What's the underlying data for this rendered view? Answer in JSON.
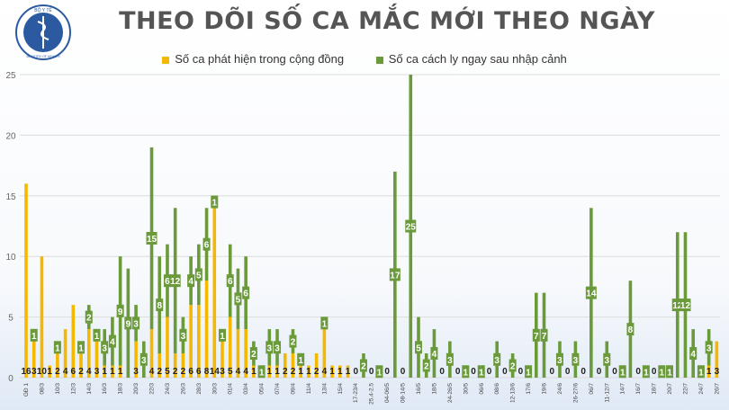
{
  "logo": {
    "text_top": "BỘ Y TẾ",
    "text_bottom": "MINISTRY OF HEALTH"
  },
  "chart_data": {
    "type": "bar",
    "stacked": true,
    "title": "THEO DÕI SỐ CA MẮC MỚI THEO NGÀY",
    "ylim": [
      0,
      25
    ],
    "yticks": [
      0,
      5,
      10,
      15,
      20,
      25
    ],
    "grid": true,
    "legend_position": "top",
    "colors": {
      "community": "#f5b800",
      "quarantine": "#6a9a3a"
    },
    "x_tick_labels": [
      "GĐ 1",
      "08/3",
      "10/3",
      "12/3",
      "14/3",
      "16/3",
      "18/3",
      "20/3",
      "22/3",
      "24/3",
      "26/3",
      "28/3",
      "30/3",
      "01/4",
      "03/4",
      "05/4",
      "07/4",
      "09/4",
      "11/4",
      "13/4",
      "15/4",
      "17-23/4",
      "25.4-2.5",
      "04-06/5",
      "08-14/5",
      "16/5",
      "18/5",
      "24-26/5",
      "30/5",
      "06/6",
      "08/6",
      "12-13/6",
      "17/6",
      "19/6",
      "24/6",
      "26-27/6",
      "06/7",
      "11-12/7",
      "14/7",
      "16/7",
      "18/7",
      "20/7",
      "22/7",
      "24/7",
      "26/7"
    ],
    "series": [
      {
        "name": "Số ca phát hiện trong cộng đồng",
        "values": [
          16,
          3,
          10,
          1,
          2,
          4,
          6,
          2,
          4,
          3,
          1,
          1,
          1,
          0,
          3,
          0,
          4,
          2,
          5,
          2,
          2,
          6,
          6,
          8,
          14,
          3,
          5,
          4,
          4,
          1,
          0,
          1,
          1,
          2,
          2,
          1,
          1,
          2,
          4,
          1,
          1,
          1,
          0,
          0,
          0,
          0,
          0,
          0,
          0,
          0,
          0,
          0,
          0,
          0,
          0,
          0,
          0,
          0,
          0,
          0,
          0,
          0,
          0,
          0,
          0,
          0,
          0,
          0,
          0,
          0,
          0,
          0,
          0,
          0,
          0,
          0,
          0,
          0,
          0,
          0,
          0,
          0,
          0,
          0,
          0,
          0,
          0,
          1,
          3
        ]
      },
      {
        "name": "Số ca cách ly ngay sau nhập cảnh",
        "values": [
          0,
          1,
          0,
          0,
          1,
          0,
          0,
          1,
          2,
          1,
          3,
          4,
          9,
          9,
          3,
          3,
          15,
          8,
          6,
          12,
          3,
          4,
          5,
          6,
          1,
          1,
          6,
          5,
          6,
          2,
          1,
          3,
          3,
          0,
          2,
          1,
          0,
          0,
          1,
          0,
          0,
          0,
          0,
          2,
          0,
          1,
          0,
          17,
          0,
          25,
          5,
          2,
          4,
          0,
          3,
          0,
          1,
          0,
          1,
          0,
          3,
          0,
          2,
          0,
          1,
          7,
          7,
          0,
          3,
          0,
          3,
          0,
          14,
          0,
          3,
          0,
          1,
          8,
          0,
          1,
          0,
          1,
          1,
          12,
          12,
          4,
          1,
          3,
          0
        ]
      }
    ]
  }
}
